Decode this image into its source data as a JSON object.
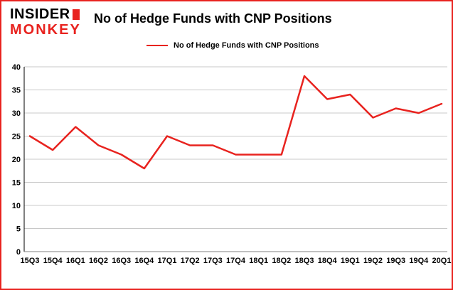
{
  "header": {
    "logo_line1": "INSIDER",
    "logo_line2": "MONKEY",
    "title": "No of Hedge Funds with CNP Positions"
  },
  "legend": {
    "label": "No of Hedge Funds with CNP Positions"
  },
  "chart_data": {
    "type": "line",
    "title": "No of Hedge Funds with CNP Positions",
    "categories": [
      "15Q3",
      "15Q4",
      "16Q1",
      "16Q2",
      "16Q3",
      "16Q4",
      "17Q1",
      "17Q2",
      "17Q3",
      "17Q4",
      "18Q1",
      "18Q2",
      "18Q3",
      "18Q4",
      "19Q1",
      "19Q2",
      "19Q3",
      "19Q4",
      "20Q1"
    ],
    "series": [
      {
        "name": "No of Hedge Funds with CNP Positions",
        "values": [
          25,
          22,
          27,
          23,
          21,
          18,
          25,
          23,
          23,
          21,
          21,
          21,
          38,
          33,
          34,
          29,
          31,
          30,
          32
        ]
      }
    ],
    "xlabel": "",
    "ylabel": "",
    "ylim": [
      0,
      40
    ],
    "ytick_step": 5,
    "grid": true,
    "legend_position": "top",
    "colors": {
      "line": "#e8231f",
      "grid": "#c8c8c8",
      "text": "#000000",
      "axis": "#808080",
      "border": "#e8231f"
    }
  }
}
